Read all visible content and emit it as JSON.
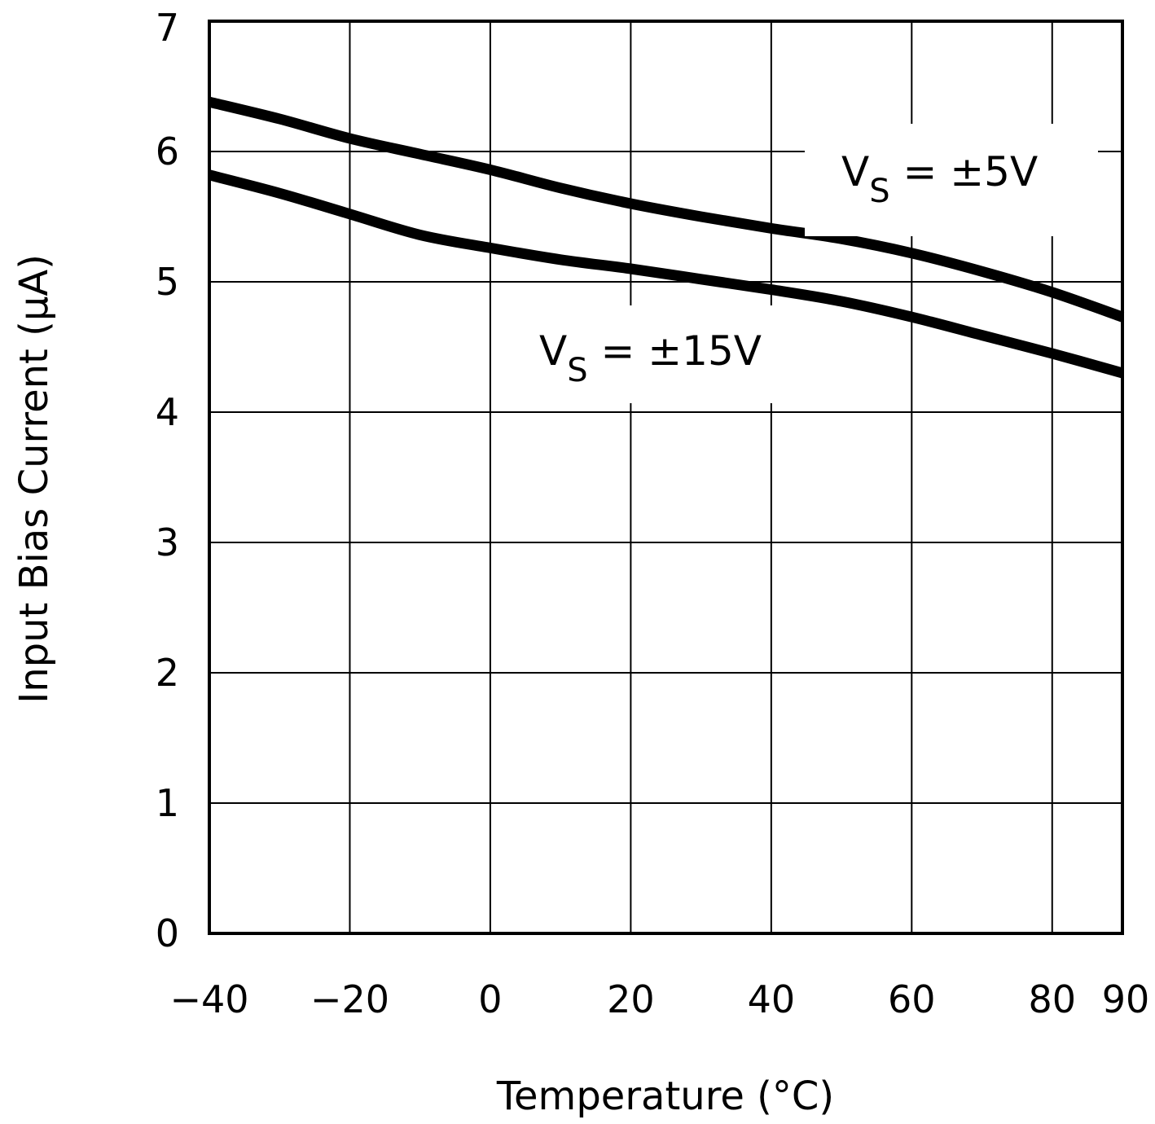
{
  "chart_data": {
    "type": "line",
    "title": "",
    "xlabel": "Temperature (°C)",
    "ylabel": "Input Bias Current (µA)",
    "xlim": [
      -40,
      90
    ],
    "ylim": [
      0,
      7
    ],
    "x_ticks": [
      -40,
      -20,
      0,
      20,
      40,
      60,
      80,
      90
    ],
    "x_tick_labels": [
      "−40",
      "−20",
      "0",
      "20",
      "40",
      "60",
      "80",
      "90"
    ],
    "y_ticks": [
      0,
      1,
      2,
      3,
      4,
      5,
      6,
      7
    ],
    "y_tick_labels": [
      "0",
      "1",
      "2",
      "3",
      "4",
      "5",
      "6",
      "7"
    ],
    "grid": true,
    "series": [
      {
        "name": "VS = ±5V",
        "label_main": "V",
        "label_sub": "S",
        "label_rest": " = ±5V",
        "x": [
          -40,
          -30,
          -20,
          -10,
          0,
          10,
          20,
          30,
          40,
          50,
          60,
          70,
          80,
          90
        ],
        "values": [
          6.38,
          6.25,
          6.1,
          5.98,
          5.86,
          5.72,
          5.6,
          5.5,
          5.41,
          5.33,
          5.22,
          5.08,
          4.92,
          4.73
        ]
      },
      {
        "name": "VS = ±15V",
        "label_main": "V",
        "label_sub": "S",
        "label_rest": " = ±15V",
        "x": [
          -40,
          -30,
          -20,
          -10,
          0,
          10,
          20,
          30,
          40,
          50,
          60,
          70,
          80,
          90
        ],
        "values": [
          5.82,
          5.68,
          5.52,
          5.36,
          5.26,
          5.17,
          5.1,
          5.02,
          4.94,
          4.85,
          4.73,
          4.59,
          4.45,
          4.3
        ]
      }
    ]
  }
}
